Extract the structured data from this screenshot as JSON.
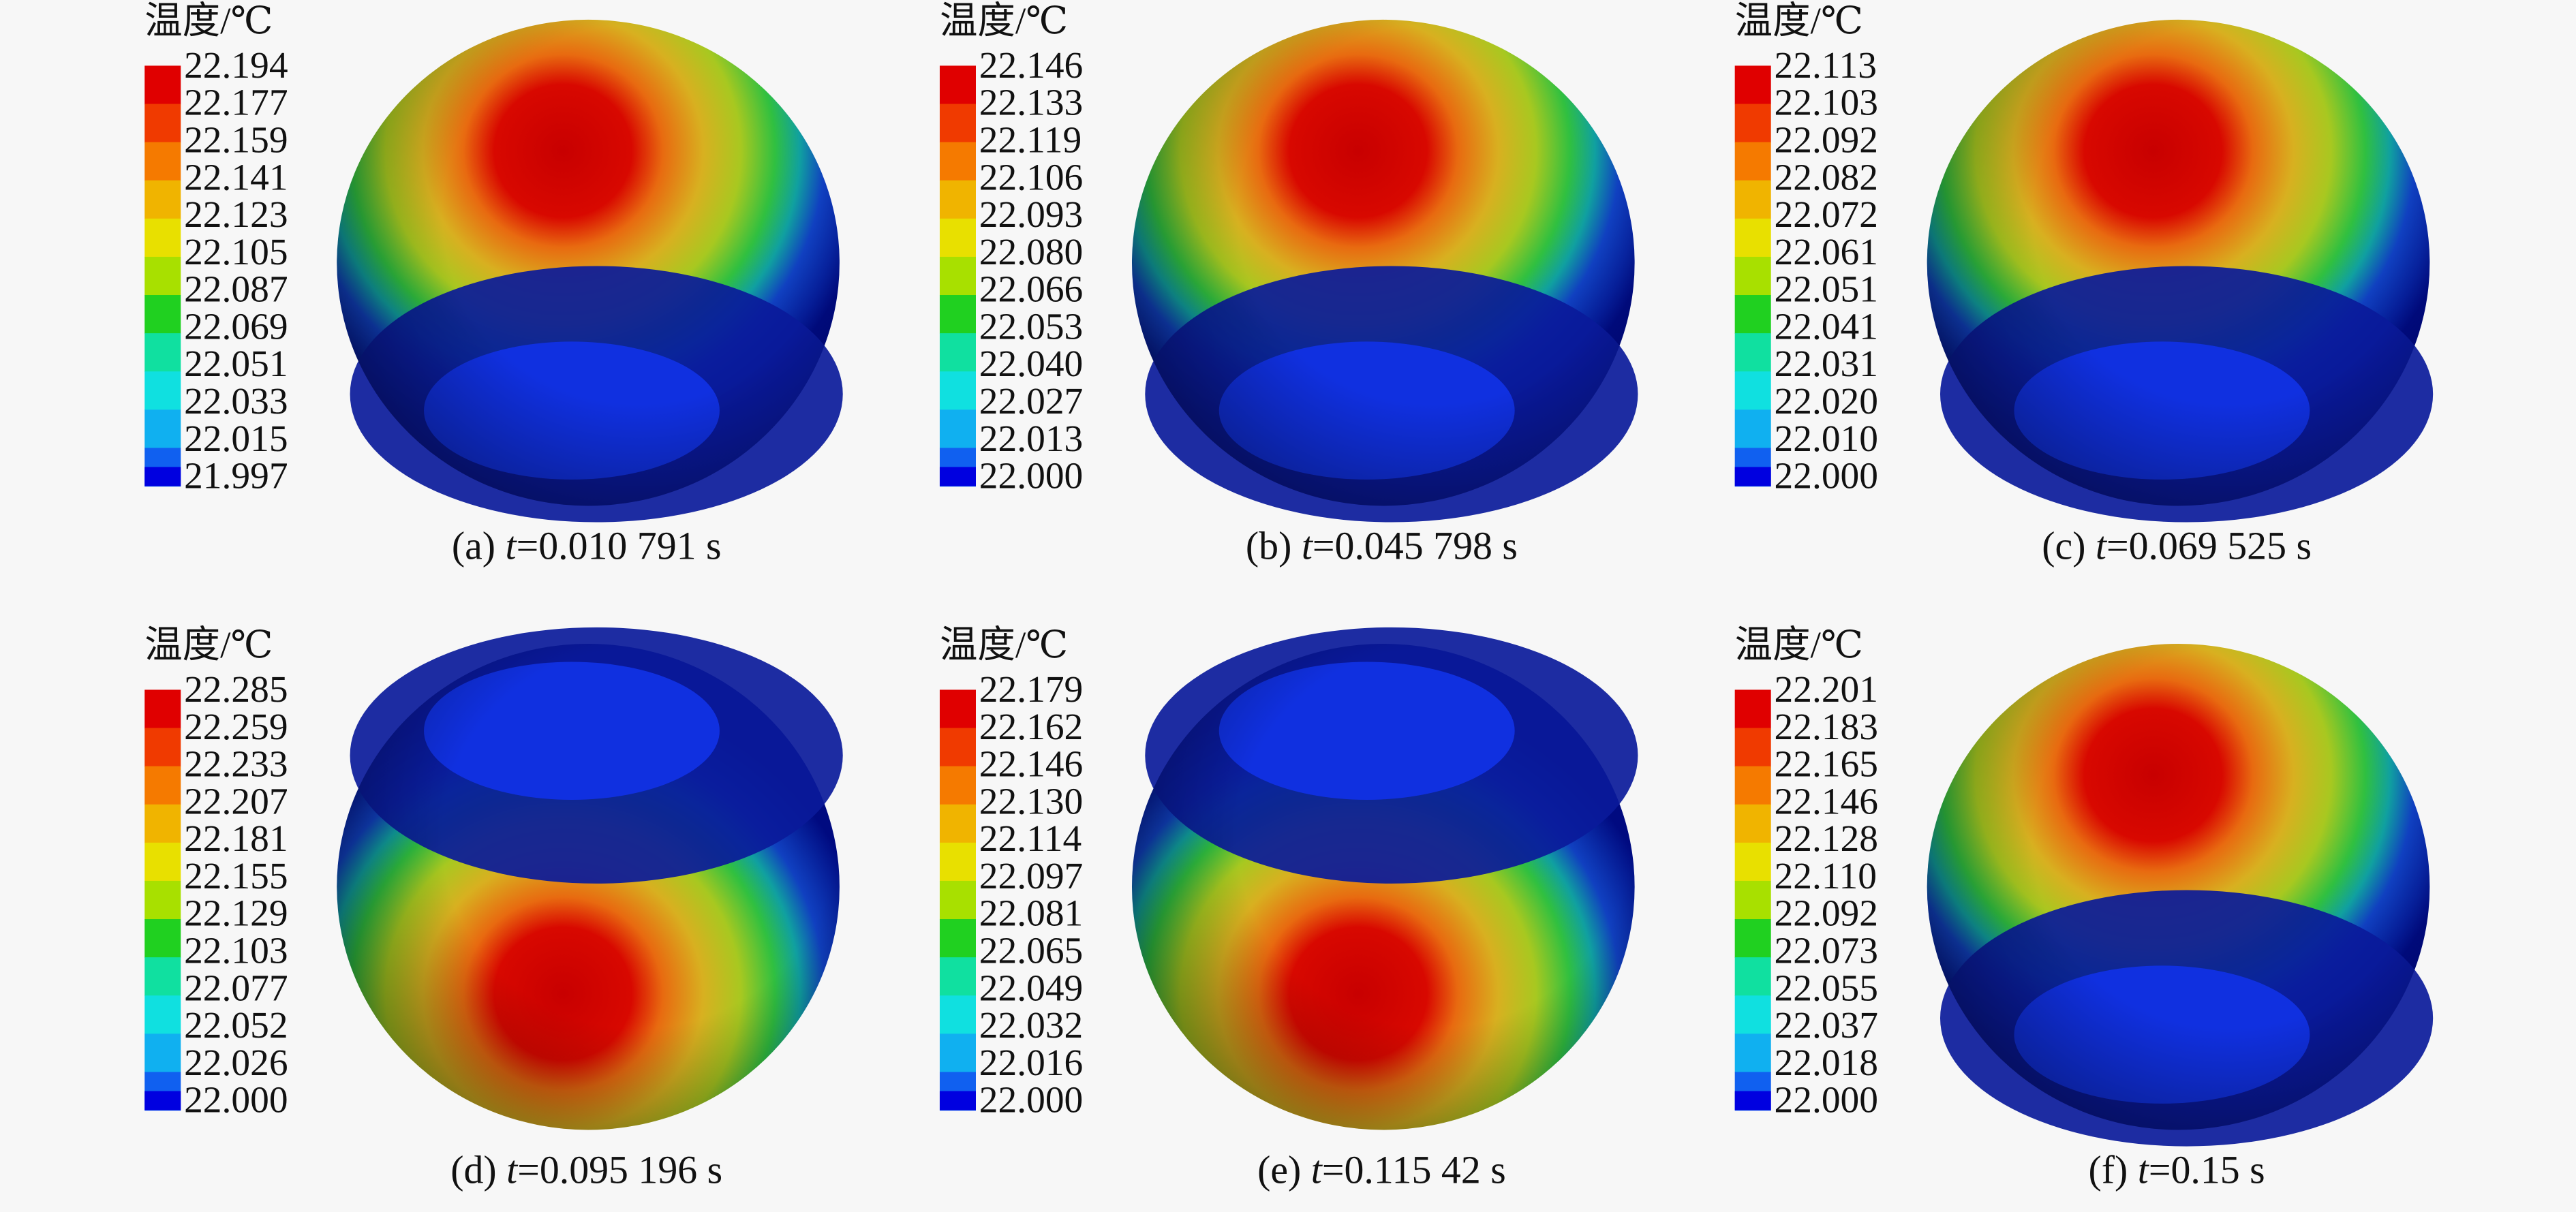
{
  "panels": [
    {
      "legend_title": "温度/℃",
      "legend_labels": [
        "22.194",
        "22.177",
        "22.159",
        "22.141",
        "22.123",
        "22.105",
        "22.087",
        "22.069",
        "22.051",
        "22.033",
        "22.015",
        "21.997"
      ],
      "caption": {
        "label": "(a)",
        "variable": "t",
        "value": "=0.010 791 s"
      }
    },
    {
      "legend_title": "温度/℃",
      "legend_labels": [
        "22.146",
        "22.133",
        "22.119",
        "22.106",
        "22.093",
        "22.080",
        "22.066",
        "22.053",
        "22.040",
        "22.027",
        "22.013",
        "22.000"
      ],
      "caption": {
        "label": "(b)",
        "variable": "t",
        "value": "=0.045 798 s"
      }
    },
    {
      "legend_title": "温度/℃",
      "legend_labels": [
        "22.113",
        "22.103",
        "22.092",
        "22.082",
        "22.072",
        "22.061",
        "22.051",
        "22.041",
        "22.031",
        "22.020",
        "22.010",
        "22.000"
      ],
      "caption": {
        "label": "(c)",
        "variable": "t",
        "value": "=0.069 525 s"
      }
    },
    {
      "legend_title": "温度/℃",
      "legend_labels": [
        "22.285",
        "22.259",
        "22.233",
        "22.207",
        "22.181",
        "22.155",
        "22.129",
        "22.103",
        "22.077",
        "22.052",
        "22.026",
        "22.000"
      ],
      "caption": {
        "label": "(d)",
        "variable": "t",
        "value": "=0.095 196 s"
      }
    },
    {
      "legend_title": "温度/℃",
      "legend_labels": [
        "22.179",
        "22.162",
        "22.146",
        "22.130",
        "22.114",
        "22.097",
        "22.081",
        "22.065",
        "22.049",
        "22.032",
        "22.016",
        "22.000"
      ],
      "caption": {
        "label": "(e)",
        "variable": "t",
        "value": "=0.115 42 s"
      }
    },
    {
      "legend_title": "温度/℃",
      "legend_labels": [
        "22.201",
        "22.183",
        "22.165",
        "22.146",
        "22.128",
        "22.110",
        "22.092",
        "22.073",
        "22.055",
        "22.037",
        "22.018",
        "22.000"
      ],
      "caption": {
        "label": "(f)",
        "variable": "t",
        "value": "=0.15 s"
      }
    }
  ]
}
